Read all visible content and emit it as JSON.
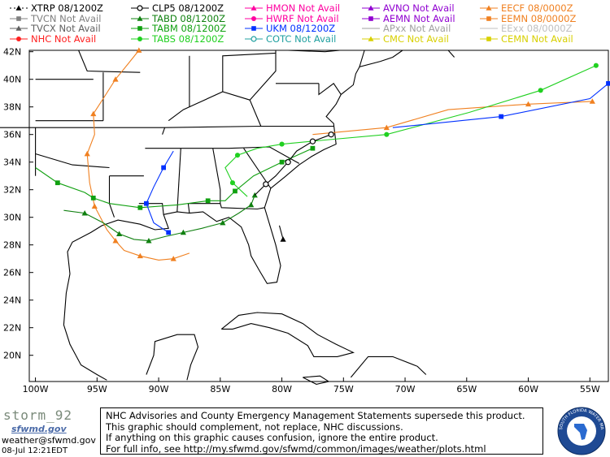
{
  "legend": [
    {
      "label": "XTRP 08/1200Z",
      "color": "#000000",
      "marker": "triangle",
      "dash": "dotted",
      "name": "legend-xtrp"
    },
    {
      "label": "CLP5 08/1200Z",
      "color": "#000000",
      "marker": "circle-open",
      "dash": "solid",
      "name": "legend-clp5"
    },
    {
      "label": "HMON Not Avail",
      "color": "#ff00a0",
      "marker": "triangle",
      "dash": "solid",
      "name": "legend-hmon"
    },
    {
      "label": "AVNO Not Avail",
      "color": "#9000d0",
      "marker": "triangle",
      "dash": "solid",
      "name": "legend-avno"
    },
    {
      "label": "EECF 08/0000Z",
      "color": "#f08020",
      "marker": "triangle",
      "dash": "solid",
      "name": "legend-eecf"
    },
    {
      "label": "TVCN Not Avail",
      "color": "#808080",
      "marker": "square",
      "dash": "solid",
      "name": "legend-tvcn"
    },
    {
      "label": "TABD 08/1200Z",
      "color": "#108010",
      "marker": "triangle",
      "dash": "solid",
      "name": "legend-tabd"
    },
    {
      "label": "HWRF Not Avail",
      "color": "#ff00a0",
      "marker": "circle",
      "dash": "solid",
      "name": "legend-hwrf"
    },
    {
      "label": "AEMN Not Avail",
      "color": "#9000d0",
      "marker": "square",
      "dash": "solid",
      "name": "legend-aemn"
    },
    {
      "label": "EEMN 08/0000Z",
      "color": "#f08020",
      "marker": "square",
      "dash": "solid",
      "name": "legend-eemn"
    },
    {
      "label": "TVCX Not Avail",
      "color": "#606060",
      "marker": "triangle",
      "dash": "solid",
      "name": "legend-tvcx"
    },
    {
      "label": "TABM 08/1200Z",
      "color": "#10a010",
      "marker": "square",
      "dash": "solid",
      "name": "legend-tabm"
    },
    {
      "label": "UKM 08/1200Z",
      "color": "#0030ff",
      "marker": "square",
      "dash": "solid",
      "name": "legend-ukm"
    },
    {
      "label": "APxx Not Avail",
      "color": "#a0a0a0",
      "marker": "none",
      "dash": "solid",
      "name": "legend-apxx"
    },
    {
      "label": "EExx 08/0000Z",
      "color": "#c0c0c0",
      "marker": "none",
      "dash": "solid",
      "name": "legend-eexx"
    },
    {
      "label": "NHC Not Avail",
      "color": "#ff2020",
      "marker": "circle",
      "dash": "solid",
      "name": "legend-nhc"
    },
    {
      "label": "TABS 08/1200Z",
      "color": "#20d020",
      "marker": "circle",
      "dash": "solid",
      "name": "legend-tabs"
    },
    {
      "label": "COTC Not Avail",
      "color": "#20a0a0",
      "marker": "circle-open",
      "dash": "solid",
      "name": "legend-cotc"
    },
    {
      "label": "CMC Not Avail",
      "color": "#d8d000",
      "marker": "triangle",
      "dash": "solid",
      "name": "legend-cmc"
    },
    {
      "label": "CEMN Not Avail",
      "color": "#d8d000",
      "marker": "square",
      "dash": "solid",
      "name": "legend-cemn"
    }
  ],
  "latitude_labels": [
    "42N",
    "40N",
    "38N",
    "36N",
    "34N",
    "32N",
    "30N",
    "28N",
    "26N",
    "24N",
    "22N",
    "20N"
  ],
  "longitude_labels": [
    "100W",
    "95W",
    "90W",
    "85W",
    "80W",
    "75W",
    "70W",
    "65W",
    "60W",
    "55W"
  ],
  "map_extent": {
    "lon_min": -100.5,
    "lon_max": -53.5,
    "lat_min": 18.1,
    "lat_max": 42.1
  },
  "tracks": [
    {
      "model": "EECF",
      "color": "#f08020",
      "marker": "triangle",
      "points": [
        [
          -87.5,
          27.4
        ],
        [
          -88.8,
          27.0
        ],
        [
          -90.0,
          26.9
        ],
        [
          -91.5,
          27.2
        ],
        [
          -92.8,
          27.6
        ],
        [
          -93.5,
          28.3
        ],
        [
          -94.2,
          29.1
        ],
        [
          -95.2,
          30.8
        ],
        [
          -95.6,
          32.5
        ],
        [
          -95.8,
          34.6
        ],
        [
          -95.2,
          36.0
        ],
        [
          -95.3,
          37.5
        ],
        [
          -94.5,
          38.6
        ],
        [
          -93.5,
          40.0
        ],
        [
          -92.5,
          41.1
        ],
        [
          -91.6,
          42.1
        ]
      ]
    },
    {
      "model": "EECF-ext",
      "color": "#f08020",
      "marker": "triangle",
      "points": [
        [
          -77.5,
          36.0
        ],
        [
          -71.5,
          36.5
        ],
        [
          -66.5,
          37.8
        ],
        [
          -60.0,
          38.2
        ],
        [
          -54.8,
          38.4
        ]
      ]
    },
    {
      "model": "TABM",
      "color": "#10a010",
      "marker": "square",
      "points": [
        [
          -100.0,
          33.6
        ],
        [
          -98.2,
          32.5
        ],
        [
          -96.0,
          31.8
        ],
        [
          -95.3,
          31.4
        ],
        [
          -94.0,
          31.0
        ],
        [
          -91.5,
          30.7
        ],
        [
          -88.5,
          30.9
        ],
        [
          -86.0,
          31.2
        ],
        [
          -84.6,
          31.2
        ],
        [
          -83.8,
          31.9
        ],
        [
          -82.3,
          33.0
        ],
        [
          -80.0,
          34.0
        ],
        [
          -77.5,
          35.0
        ]
      ]
    },
    {
      "model": "TABS",
      "color": "#20d020",
      "marker": "circle",
      "points": [
        [
          -82.8,
          31.5
        ],
        [
          -84.0,
          32.5
        ],
        [
          -84.6,
          33.6
        ],
        [
          -83.6,
          34.5
        ],
        [
          -82.0,
          35.0
        ],
        [
          -80.0,
          35.3
        ],
        [
          -76.5,
          35.6
        ],
        [
          -71.5,
          36.0
        ],
        [
          -64.8,
          37.6
        ],
        [
          -59.0,
          39.2
        ],
        [
          -54.5,
          41.0
        ]
      ]
    },
    {
      "model": "TABD",
      "color": "#108010",
      "marker": "triangle",
      "points": [
        [
          -97.7,
          30.5
        ],
        [
          -96.0,
          30.3
        ],
        [
          -94.5,
          29.6
        ],
        [
          -93.2,
          28.8
        ],
        [
          -92.0,
          28.4
        ],
        [
          -90.8,
          28.3
        ],
        [
          -89.5,
          28.6
        ],
        [
          -88.0,
          28.9
        ],
        [
          -86.5,
          29.2
        ],
        [
          -84.8,
          29.6
        ],
        [
          -83.5,
          30.3
        ],
        [
          -82.5,
          30.9
        ],
        [
          -82.2,
          31.6
        ]
      ]
    },
    {
      "model": "UKM",
      "color": "#0030ff",
      "marker": "square",
      "points": [
        [
          -88.8,
          34.8
        ],
        [
          -89.6,
          33.6
        ],
        [
          -90.4,
          32.2
        ],
        [
          -91.0,
          31.0
        ],
        [
          -90.4,
          29.6
        ],
        [
          -89.2,
          28.9
        ]
      ]
    },
    {
      "model": "UKM-ext",
      "color": "#0030ff",
      "marker": "square",
      "points": [
        [
          -71.0,
          36.5
        ],
        [
          -62.2,
          37.3
        ],
        [
          -55.0,
          38.6
        ],
        [
          -53.5,
          39.7
        ]
      ]
    },
    {
      "model": "CLP5",
      "color": "#000000",
      "marker": "circle-open",
      "points": [
        [
          -82.2,
          31.6
        ],
        [
          -81.3,
          32.4
        ],
        [
          -80.5,
          33.0
        ],
        [
          -79.5,
          34.0
        ],
        [
          -78.8,
          34.8
        ],
        [
          -77.5,
          35.5
        ],
        [
          -76.0,
          36.0
        ]
      ]
    },
    {
      "model": "XTRP",
      "color": "#000000",
      "marker": "triangle",
      "points": [
        [
          -80.2,
          29.4
        ],
        [
          -79.9,
          28.4
        ]
      ]
    }
  ],
  "footer": {
    "brand_name": "storm_92",
    "brand_sub": "sfwmd.gov",
    "email": "weather@sfwmd.gov",
    "timestamp": "08-Jul 12:21EDT",
    "disclaimer_lines": [
      "NHC Advisories and County Emergency Management Statements supersede this product.",
      "This graphic should complement, not replace, NHC discussions.",
      "If anything on this graphic causes confusion, ignore the entire product.",
      "For full info, see  http://my.sfwmd.gov/sfwmd/common/images/weather/plots.html"
    ],
    "logo_text": "SOUTH FLORIDA WATER MANAGEMENT DISTRICT"
  }
}
